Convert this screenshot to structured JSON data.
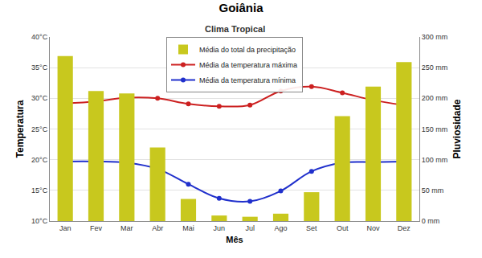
{
  "chart_data": {
    "type": "bar",
    "title": "Goiânia",
    "subtitle": "Clima Tropical",
    "x_label": "Mês",
    "y_label": "Temperatura",
    "y2_label": "Pluviosidade",
    "categories": [
      "Jan",
      "Fev",
      "Mar",
      "Abr",
      "Mai",
      "Jun",
      "Jul",
      "Ago",
      "Set",
      "Out",
      "Nov",
      "Dez"
    ],
    "series": [
      {
        "name": "Média do total da precipitação",
        "type": "bar",
        "axis": "y2",
        "color": "#c8c81e",
        "values": [
          269,
          212,
          208,
          120,
          36,
          9,
          7,
          12,
          47,
          171,
          219,
          259
        ]
      },
      {
        "name": "Média da temperatura máxima",
        "type": "line",
        "axis": "y",
        "color": "#cc2020",
        "marker": "circle",
        "line_style": "spline",
        "values": [
          29.2,
          29.5,
          30.1,
          30.0,
          29.1,
          28.7,
          28.9,
          31.2,
          31.9,
          30.9,
          29.7,
          28.9
        ]
      },
      {
        "name": "Média da temperatura mínima",
        "type": "line",
        "axis": "y",
        "color": "#2030cc",
        "marker": "circle",
        "line_style": "spline",
        "values": [
          19.7,
          19.7,
          19.5,
          18.5,
          16.0,
          13.7,
          13.2,
          14.9,
          18.1,
          19.5,
          19.6,
          19.7
        ]
      }
    ],
    "ylim": [
      10,
      40
    ],
    "yticks": [
      {
        "value": 10,
        "label": "10°C"
      },
      {
        "value": 15,
        "label": "15°C"
      },
      {
        "value": 20,
        "label": "20°C"
      },
      {
        "value": 25,
        "label": "25°C"
      },
      {
        "value": 30,
        "label": "30°C"
      },
      {
        "value": 35,
        "label": "35°C"
      },
      {
        "value": 40,
        "label": "40°C"
      }
    ],
    "y2lim": [
      0,
      300
    ],
    "y2ticks": [
      {
        "value": 0,
        "label": "0 mm"
      },
      {
        "value": 50,
        "label": "50 mm"
      },
      {
        "value": 100,
        "label": "100 mm"
      },
      {
        "value": 150,
        "label": "150 mm"
      },
      {
        "value": 200,
        "label": "200 mm"
      },
      {
        "value": 250,
        "label": "250 mm"
      },
      {
        "value": 300,
        "label": "300 mm"
      }
    ],
    "grid": true,
    "legend": "top"
  }
}
